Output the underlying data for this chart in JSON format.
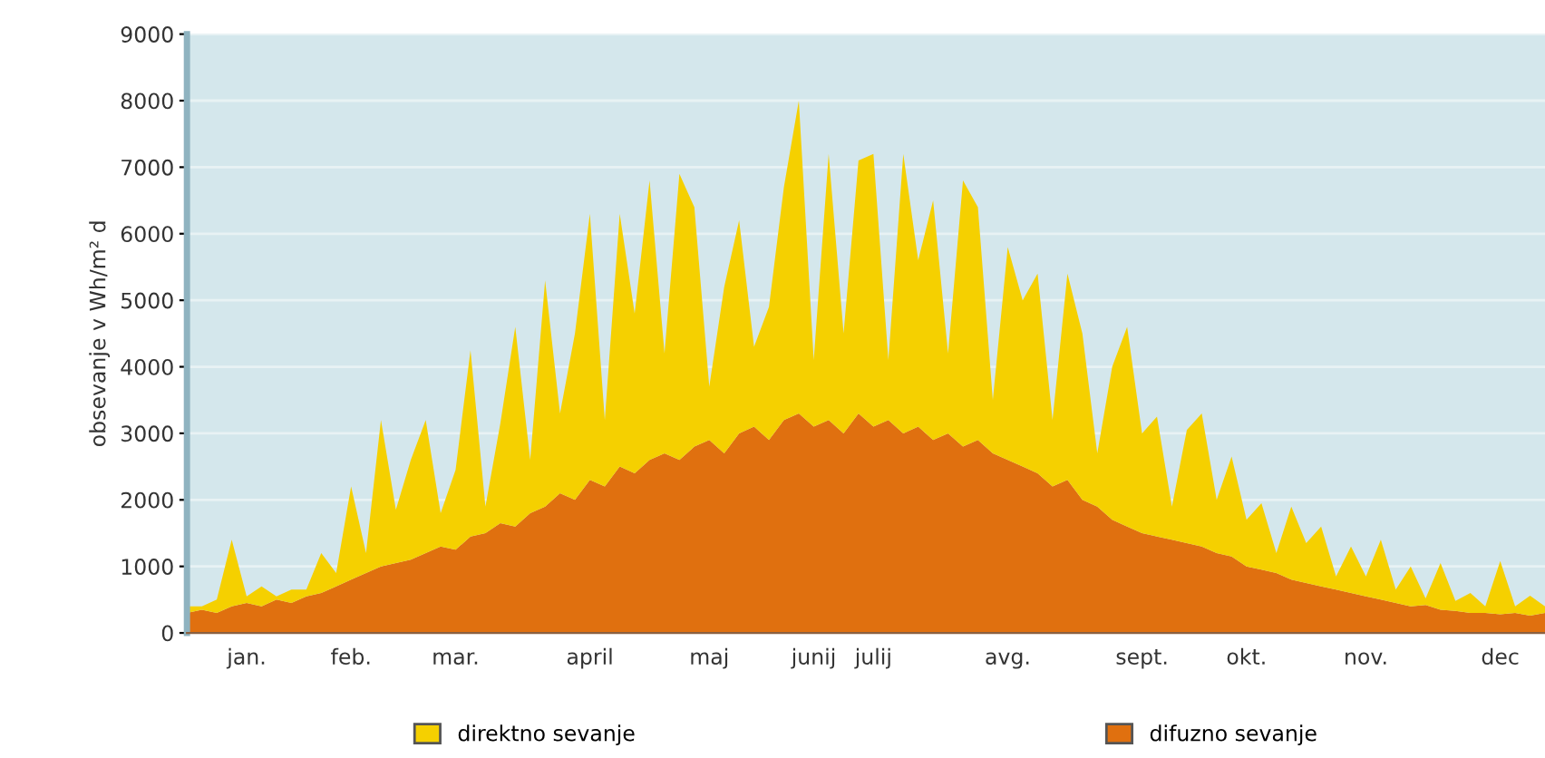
{
  "chart_data": {
    "type": "area",
    "stacked": true,
    "ylabel": "obsevanje v Wh/m² d",
    "categories": [
      null,
      null,
      null,
      null,
      "jan.",
      null,
      null,
      null,
      null,
      null,
      null,
      "feb.",
      null,
      null,
      null,
      null,
      null,
      null,
      "mar.",
      null,
      null,
      null,
      null,
      null,
      null,
      null,
      null,
      "april",
      null,
      null,
      null,
      null,
      null,
      null,
      null,
      "maj",
      null,
      null,
      null,
      null,
      null,
      null,
      "junij",
      null,
      null,
      null,
      "julij",
      null,
      null,
      null,
      null,
      null,
      null,
      null,
      null,
      "avg.",
      null,
      null,
      null,
      null,
      null,
      null,
      null,
      null,
      "sept.",
      null,
      null,
      null,
      null,
      null,
      null,
      "okt.",
      null,
      null,
      null,
      null,
      null,
      null,
      null,
      "nov.",
      null,
      null,
      null,
      null,
      null,
      null,
      null,
      null,
      "dec",
      null,
      null,
      null
    ],
    "series": [
      {
        "name": "difuzno sevanje",
        "color": "#e0700f",
        "values": [
          300,
          350,
          300,
          400,
          450,
          400,
          500,
          450,
          550,
          600,
          700,
          800,
          900,
          1000,
          1050,
          1100,
          1200,
          1300,
          1250,
          1450,
          1500,
          1650,
          1600,
          1800,
          1900,
          2100,
          2000,
          2300,
          2200,
          2500,
          2400,
          2600,
          2700,
          2600,
          2800,
          2900,
          2700,
          3000,
          3100,
          2900,
          3200,
          3300,
          3100,
          3200,
          3000,
          3300,
          3100,
          3200,
          3000,
          3100,
          2900,
          3000,
          2800,
          2900,
          2700,
          2600,
          2500,
          2400,
          2200,
          2300,
          2000,
          1900,
          1700,
          1600,
          1500,
          1450,
          1400,
          1350,
          1300,
          1200,
          1150,
          1000,
          950,
          900,
          800,
          750,
          700,
          650,
          600,
          550,
          500,
          450,
          400,
          420,
          350,
          330,
          300,
          300,
          280,
          300,
          260,
          300
        ]
      },
      {
        "name": "direktno sevanje",
        "color": "#f5d000",
        "values": [
          100,
          50,
          200,
          1000,
          100,
          300,
          50,
          200,
          100,
          600,
          200,
          1400,
          300,
          2200,
          800,
          1500,
          2000,
          500,
          1200,
          2800,
          400,
          1500,
          3000,
          800,
          3400,
          1200,
          2500,
          4000,
          1000,
          3800,
          2400,
          4200,
          1500,
          4300,
          3600,
          800,
          2500,
          3200,
          1200,
          2000,
          3500,
          4700,
          1000,
          4000,
          1500,
          3800,
          4100,
          900,
          4200,
          2500,
          3600,
          1200,
          4000,
          3500,
          800,
          3200,
          2500,
          3000,
          1000,
          3100,
          2500,
          800,
          2300,
          3000,
          1500,
          1800,
          500,
          1700,
          2000,
          800,
          1500,
          700,
          1000,
          300,
          1100,
          600,
          900,
          200,
          700,
          300,
          900,
          200,
          600,
          100,
          700,
          150,
          300,
          100,
          800,
          100,
          300,
          100
        ]
      }
    ],
    "ylim": [
      0,
      9000
    ],
    "yticks": [
      0,
      1000,
      2000,
      3000,
      4000,
      5000,
      6000,
      7000,
      8000,
      9000
    ],
    "grid": "y",
    "legend": "bottom"
  }
}
